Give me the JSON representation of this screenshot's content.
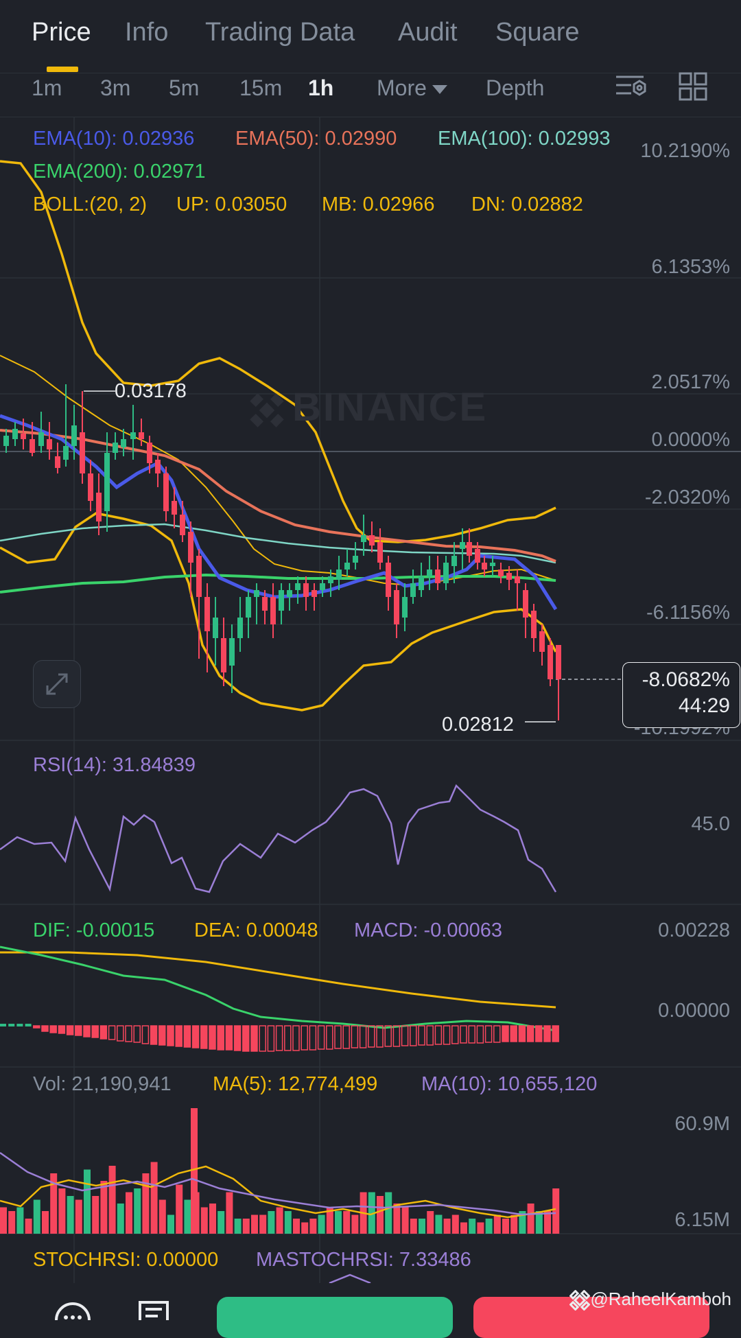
{
  "tabs": [
    {
      "label": "Price",
      "active": true
    },
    {
      "label": "Info",
      "active": false
    },
    {
      "label": "Trading Data",
      "active": false
    },
    {
      "label": "Audit",
      "active": false
    },
    {
      "label": "Square",
      "active": false
    }
  ],
  "intervals": [
    {
      "label": "1m",
      "active": false
    },
    {
      "label": "3m",
      "active": false
    },
    {
      "label": "5m",
      "active": false
    },
    {
      "label": "15m",
      "active": false
    },
    {
      "label": "1h",
      "active": true
    }
  ],
  "more_label": "More",
  "depth_label": "Depth",
  "toolbar_icons": [
    "chart-settings-icon",
    "grid-layout-icon"
  ],
  "ema": {
    "ema10": "EMA(10): 0.02936",
    "ema50": "EMA(50): 0.02990",
    "ema100": "EMA(100): 0.02993",
    "ema200": "EMA(200): 0.02971"
  },
  "boll": {
    "label": "BOLL:(20, 2)",
    "up": "UP: 0.03050",
    "mb": "MB: 0.02966",
    "dn": "DN: 0.02882"
  },
  "price_axis": [
    "10.2190%",
    "6.1353%",
    "2.0517%",
    "0.0000%",
    "-2.0320%",
    "-6.1156%",
    "-10.1992%"
  ],
  "high_label": "0.03178",
  "low_label": "0.02812",
  "current_change": "-8.0682%",
  "countdown": "44:29",
  "watermark": "BINANCE",
  "rsi": {
    "label": "RSI(14): 31.84839",
    "axis": "45.0"
  },
  "macd": {
    "dif": "DIF: -0.00015",
    "dea": "DEA: 0.00048",
    "macd": "MACD: -0.00063",
    "axis_top": "0.00228",
    "axis_mid": "0.00000"
  },
  "volume": {
    "vol": "Vol: 21,190,941",
    "ma5": "MA(5): 12,774,499",
    "ma10": "MA(10): 10,655,120",
    "axis_top": "60.9M",
    "axis_bottom": "6.15M"
  },
  "stochrsi": {
    "label": "STOCHRSI: 0.00000",
    "ma": "MASTOCHRSI: 7.33486"
  },
  "credit": "@RaheelKamboh",
  "colors": {
    "ema10": "#4a5ae8",
    "ema50": "#e8735a",
    "ema100": "#7fd6c6",
    "ema200": "#3ad36b",
    "boll": "#f0b90b",
    "rsi": "#9b7fd6",
    "up": "#2ebd85",
    "down": "#f6465d"
  }
}
